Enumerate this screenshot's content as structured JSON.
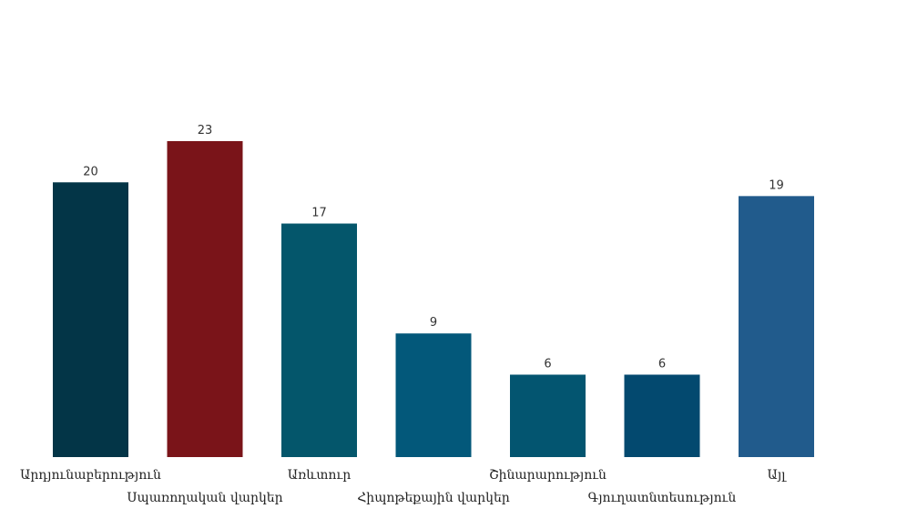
{
  "chart_data": {
    "type": "bar",
    "categories": [
      "Արդյունաբերություն",
      "Սպառողական վարկեր",
      "Առևտուր",
      "Հիպոթեքային վարկեր",
      "Շինարարություն",
      "Գյուղատնտեսություն",
      "Այլ"
    ],
    "values": [
      20,
      23,
      17,
      9,
      6,
      6,
      19
    ],
    "colors": [
      "#033547",
      "#7a1419",
      "#04566b",
      "#03587a",
      "#035570",
      "#03496f",
      "#215b8c"
    ],
    "title": "",
    "xlabel": "",
    "ylabel": "",
    "ylim": [
      0,
      23
    ],
    "grid": false,
    "legend": "none",
    "data_labels": true
  }
}
